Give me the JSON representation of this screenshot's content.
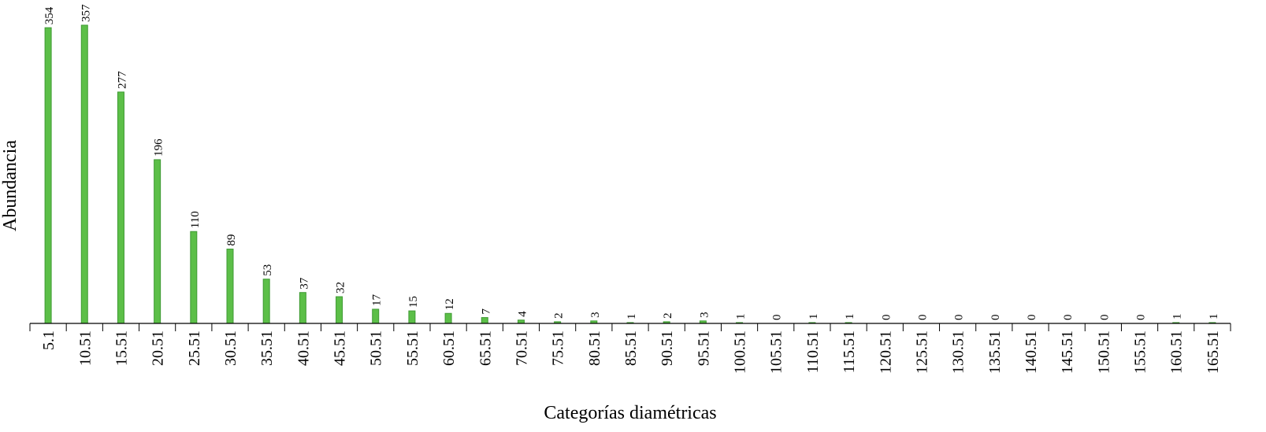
{
  "chart_data": {
    "type": "bar",
    "title": "",
    "xlabel": "Categorías diamétricas",
    "ylabel": "Abundancia",
    "categories": [
      "5.1",
      "10.51",
      "15.51",
      "20.51",
      "25.51",
      "30.51",
      "35.51",
      "40.51",
      "45.51",
      "50.51",
      "55.51",
      "60.51",
      "65.51",
      "70.51",
      "75.51",
      "80.51",
      "85.51",
      "90.51",
      "95.51",
      "100.51",
      "105.51",
      "110.51",
      "115.51",
      "120.51",
      "125.51",
      "130.51",
      "135.51",
      "140.51",
      "145.51",
      "150.51",
      "155.51",
      "160.51",
      "165.51"
    ],
    "values": [
      354,
      357,
      277,
      196,
      110,
      89,
      53,
      37,
      32,
      17,
      15,
      12,
      7,
      4,
      2,
      3,
      1,
      2,
      3,
      1,
      0,
      1,
      1,
      0,
      0,
      0,
      0,
      0,
      0,
      0,
      0,
      1,
      1
    ],
    "data_labels": true,
    "ylim": [
      0,
      357
    ],
    "grid": false,
    "legend": "none",
    "bar_color": "#5cbf48",
    "bar_edge_color": "#3f9a34"
  }
}
